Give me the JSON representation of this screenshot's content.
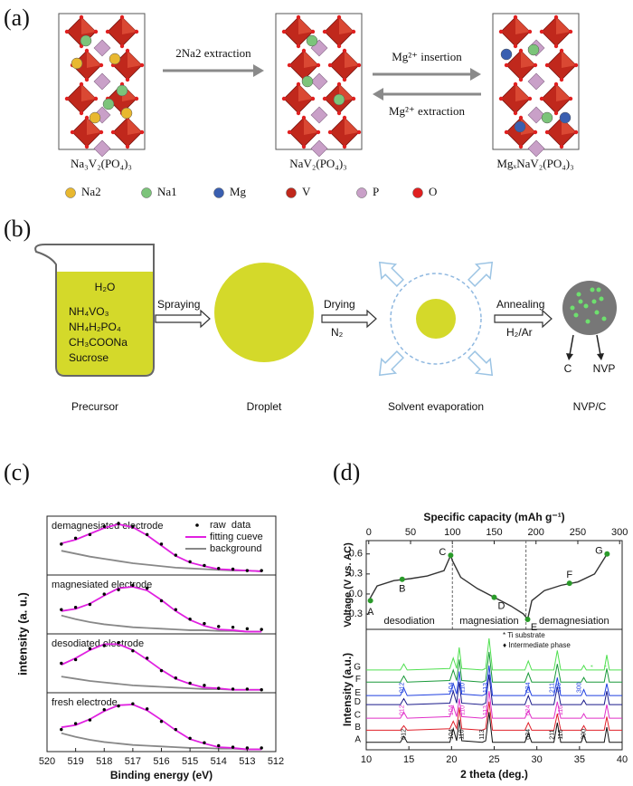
{
  "panel_a": {
    "label": "(a)",
    "arrow_1": "2Na2 extraction",
    "arrow_2": "Mg²⁺ insertion",
    "arrow_3": "Mg²⁺ extraction",
    "structures": [
      "Na₃V₂(PO₄)₃",
      "NaV₂(PO₄)₃",
      "MgₓNaV₂(PO₄)₃"
    ],
    "legend": [
      {
        "name": "Na2",
        "color": "#e8b830"
      },
      {
        "name": "Na1",
        "color": "#7cc47a"
      },
      {
        "name": "Mg",
        "color": "#3a5fb0"
      },
      {
        "name": "V",
        "color": "#c0281c"
      },
      {
        "name": "P",
        "color": "#c9a0c8"
      },
      {
        "name": "O",
        "color": "#e02020"
      }
    ]
  },
  "panel_b": {
    "label": "(b)",
    "solution": [
      "H₂O",
      "NH₄VO₃",
      "NH₄H₂PO₄",
      "CH₃COONa",
      "Sucrose"
    ],
    "stages": [
      "Precursor",
      "Droplet",
      "Solvent evaporation",
      "NVP/C"
    ],
    "arrows": [
      {
        "top": "Spraying"
      },
      {
        "top": "Drying",
        "bottom": "N₂"
      },
      {
        "top": "Annealing",
        "bottom": "H₂/Ar"
      }
    ],
    "components": [
      "C",
      "NVP"
    ]
  },
  "panel_c": {
    "label": "(c)",
    "type": "scatter-fit",
    "x_label": "Binding energy (eV)",
    "y_label": "intensity (a. u.)",
    "xlim": [
      520,
      512
    ],
    "xticks": [
      520,
      519,
      518,
      517,
      516,
      515,
      514,
      513,
      512
    ],
    "legend": {
      "raw": "raw  data",
      "fit": "fitting cueve",
      "background": "background"
    },
    "colors": {
      "raw": "#000000",
      "fit": "#e020e0",
      "background": "#888888"
    },
    "x": [
      519.5,
      519,
      518.5,
      518,
      517.5,
      517,
      516.5,
      516,
      515.5,
      515,
      514.5,
      514,
      513.5,
      513,
      512.5
    ],
    "subplots": [
      {
        "name": "demagnesiated electrode",
        "ylim": [
          0,
          0.8
        ],
        "raw": [
          0.42,
          0.5,
          0.55,
          0.66,
          0.7,
          0.66,
          0.55,
          0.42,
          0.27,
          0.18,
          0.13,
          0.09,
          0.08,
          0.06,
          0.06
        ],
        "fit": [
          0.43,
          0.48,
          0.56,
          0.64,
          0.69,
          0.65,
          0.54,
          0.4,
          0.26,
          0.17,
          0.12,
          0.08,
          0.07,
          0.06,
          0.05
        ],
        "background": [
          0.33,
          0.29,
          0.25,
          0.22,
          0.19,
          0.16,
          0.14,
          0.12,
          0.1,
          0.09,
          0.08,
          0.07,
          0.06,
          0.06,
          0.05
        ]
      },
      {
        "name": "magnesiated electrode",
        "ylim": [
          0,
          0.8
        ],
        "raw": [
          0.33,
          0.36,
          0.4,
          0.54,
          0.6,
          0.66,
          0.62,
          0.45,
          0.33,
          0.2,
          0.14,
          0.1,
          0.09,
          0.07,
          0.06
        ],
        "fit": [
          0.31,
          0.34,
          0.41,
          0.52,
          0.62,
          0.64,
          0.59,
          0.46,
          0.31,
          0.19,
          0.11,
          0.06,
          0.05,
          0.03,
          0.03
        ],
        "background": [
          0.25,
          0.2,
          0.16,
          0.13,
          0.11,
          0.09,
          0.08,
          0.07,
          0.06,
          0.05,
          0.05,
          0.04,
          0.04,
          0.03,
          0.03
        ]
      },
      {
        "name": "desodiated electrode",
        "ylim": [
          0,
          0.8
        ],
        "raw": [
          0.4,
          0.45,
          0.6,
          0.64,
          0.68,
          0.57,
          0.47,
          0.3,
          0.2,
          0.13,
          0.1,
          0.06,
          0.05,
          0.05,
          0.04
        ],
        "fit": [
          0.38,
          0.47,
          0.58,
          0.66,
          0.66,
          0.58,
          0.45,
          0.31,
          0.19,
          0.12,
          0.07,
          0.06,
          0.04,
          0.04,
          0.04
        ],
        "background": [
          0.22,
          0.19,
          0.16,
          0.14,
          0.12,
          0.1,
          0.09,
          0.08,
          0.07,
          0.06,
          0.05,
          0.05,
          0.04,
          0.04,
          0.04
        ]
      },
      {
        "name": "fresh electrode",
        "ylim": [
          0,
          0.8
        ],
        "raw": [
          0.3,
          0.38,
          0.43,
          0.57,
          0.62,
          0.65,
          0.58,
          0.41,
          0.3,
          0.18,
          0.12,
          0.08,
          0.06,
          0.05,
          0.05
        ],
        "fit": [
          0.33,
          0.36,
          0.44,
          0.55,
          0.63,
          0.64,
          0.56,
          0.43,
          0.29,
          0.17,
          0.11,
          0.06,
          0.05,
          0.03,
          0.03
        ],
        "background": [
          0.25,
          0.2,
          0.16,
          0.13,
          0.11,
          0.09,
          0.08,
          0.07,
          0.06,
          0.05,
          0.05,
          0.04,
          0.04,
          0.03,
          0.03
        ]
      }
    ]
  },
  "panel_d": {
    "label": "(d)",
    "voltage": {
      "type": "line",
      "x_label": "Specific capacity (mAh g⁻¹)",
      "y_label": "Voltage (V vs. AC)",
      "xlim": [
        -3,
        303
      ],
      "xticks": [
        0,
        50,
        100,
        150,
        200,
        250,
        300
      ],
      "ylim": [
        -0.53,
        0.8
      ],
      "yticks": [
        0.6,
        0.3,
        {
          "value": 0,
          "label": "0.0"
        },
        -0.3
      ],
      "line_color": "#333333",
      "point_color": "#2a9a2a",
      "x": [
        0,
        10,
        30,
        50,
        70,
        90,
        98,
        100,
        110,
        130,
        150,
        170,
        185,
        190,
        195,
        210,
        230,
        250,
        270,
        285
      ],
      "values": [
        -0.1,
        0.12,
        0.2,
        0.23,
        0.27,
        0.35,
        0.58,
        0.5,
        0.25,
        0.08,
        -0.05,
        -0.18,
        -0.3,
        -0.38,
        -0.1,
        0.05,
        0.13,
        0.18,
        0.3,
        0.6
      ],
      "points": [
        {
          "label": "A",
          "x": 2,
          "y": -0.1
        },
        {
          "label": "B",
          "x": 40,
          "y": 0.22
        },
        {
          "label": "C",
          "x": 98,
          "y": 0.58
        },
        {
          "label": "D",
          "x": 150,
          "y": -0.05
        },
        {
          "label": "E",
          "x": 190,
          "y": -0.38
        },
        {
          "label": "F",
          "x": 240,
          "y": 0.16
        },
        {
          "label": "G",
          "x": 285,
          "y": 0.6
        }
      ],
      "dividers": [
        100,
        188
      ],
      "regions": [
        "desodiation",
        "magnesiation",
        "demagnesiation"
      ]
    },
    "xrd": {
      "type": "line",
      "x_label": "2 theta (deg.)",
      "y_label": "Intensity (a.u.)",
      "xlim": [
        10,
        40
      ],
      "xticks": [
        10,
        15,
        20,
        25,
        30,
        35,
        40
      ],
      "ylim": [
        0,
        8
      ],
      "legend": [
        "* Ti substrate",
        "♦ Intermediate phase"
      ],
      "x": [
        10,
        14.0,
        14.4,
        14.8,
        19.8,
        20.2,
        20.6,
        20.9,
        21.2,
        23.6,
        24.0,
        24.4,
        24.8,
        28.6,
        29.0,
        29.4,
        32.0,
        32.4,
        32.8,
        35.2,
        35.5,
        35.8,
        37.9,
        38.2,
        38.5,
        40
      ],
      "series": [
        {
          "name": "A",
          "color": "#111111",
          "values": [
            0.5,
            0.5,
            0.9,
            0.5,
            0.5,
            1.4,
            0.6,
            2.0,
            0.6,
            0.5,
            0.6,
            2.5,
            0.5,
            0.5,
            1.1,
            0.5,
            0.5,
            1.8,
            0.5,
            0.5,
            1.0,
            0.5,
            0.5,
            1.5,
            0.5,
            0.5
          ]
        },
        {
          "name": "B",
          "color": "#e0202a",
          "values": [
            1.3,
            1.3,
            1.6,
            1.3,
            1.4,
            1.9,
            1.4,
            2.8,
            1.4,
            1.3,
            1.4,
            3.2,
            1.3,
            1.3,
            1.8,
            1.3,
            1.3,
            2.4,
            1.3,
            1.3,
            1.6,
            1.3,
            1.3,
            2.2,
            1.3,
            1.3
          ]
        },
        {
          "name": "C",
          "color": "#e030c8",
          "values": [
            2.1,
            2.1,
            2.5,
            2.1,
            2.2,
            2.9,
            2.2,
            3.4,
            2.2,
            2.1,
            2.2,
            3.9,
            2.1,
            2.1,
            2.6,
            2.1,
            2.1,
            3.2,
            2.1,
            2.1,
            2.4,
            2.1,
            2.1,
            3.0,
            2.1,
            2.1
          ]
        },
        {
          "name": "D",
          "color": "#1a1a8a",
          "values": [
            3.0,
            3.0,
            3.4,
            3.0,
            3.1,
            3.9,
            3.1,
            4.5,
            3.1,
            3.0,
            3.1,
            5.0,
            3.0,
            3.0,
            3.6,
            3.0,
            3.0,
            4.2,
            3.0,
            3.0,
            3.3,
            3.0,
            3.0,
            3.9,
            3.0,
            3.0
          ]
        },
        {
          "name": "E",
          "color": "#2040e0",
          "values": [
            3.6,
            3.6,
            4.1,
            3.6,
            3.7,
            4.4,
            3.7,
            5.2,
            3.7,
            3.6,
            3.7,
            5.6,
            3.6,
            3.6,
            4.2,
            3.6,
            3.6,
            4.8,
            3.6,
            3.6,
            4.0,
            3.6,
            3.6,
            4.4,
            3.6,
            3.6
          ]
        },
        {
          "name": "F",
          "color": "#1a9a3a",
          "values": [
            4.5,
            4.5,
            4.9,
            4.5,
            4.6,
            5.3,
            4.6,
            6.0,
            4.6,
            4.5,
            4.6,
            6.5,
            4.5,
            4.5,
            5.1,
            4.5,
            4.5,
            5.7,
            4.5,
            4.5,
            4.8,
            4.5,
            4.5,
            5.4,
            4.5,
            4.5
          ]
        },
        {
          "name": "G",
          "color": "#50e050",
          "values": [
            5.3,
            5.3,
            5.7,
            5.3,
            5.4,
            6.1,
            5.4,
            6.8,
            5.4,
            5.3,
            5.4,
            7.4,
            5.3,
            5.3,
            5.9,
            5.3,
            5.3,
            6.6,
            5.3,
            5.3,
            5.6,
            5.3,
            5.3,
            6.3,
            5.3,
            5.3
          ]
        }
      ],
      "hkl_labels": [
        {
          "text": "012",
          "x": 14.4,
          "series": 0
        },
        {
          "text": "104",
          "x": 20.0,
          "series": 0
        },
        {
          "text": "110",
          "x": 21.2,
          "series": 0
        },
        {
          "text": "113",
          "x": 23.6,
          "series": 0
        },
        {
          "text": "024",
          "x": 29.0,
          "series": 0
        },
        {
          "text": "211",
          "x": 31.8,
          "series": 0
        },
        {
          "text": "116",
          "x": 32.8,
          "series": 0
        },
        {
          "text": "300",
          "x": 35.5,
          "series": 0
        },
        {
          "text": "012",
          "x": 14.2,
          "series": 2
        },
        {
          "text": "104",
          "x": 20.0,
          "series": 2
        },
        {
          "text": "110",
          "x": 21.3,
          "series": 2
        },
        {
          "text": "113",
          "x": 24.0,
          "series": 2
        },
        {
          "text": "024",
          "x": 29.0,
          "series": 2
        },
        {
          "text": "116",
          "x": 32.8,
          "series": 2
        },
        {
          "text": "012",
          "x": 14.2,
          "series": 4
        },
        {
          "text": "104",
          "x": 20.0,
          "series": 4
        },
        {
          "text": "110",
          "x": 21.3,
          "series": 4
        },
        {
          "text": "113",
          "x": 24.0,
          "series": 4
        },
        {
          "text": "024",
          "x": 29.0,
          "series": 4
        },
        {
          "text": "211",
          "x": 31.8,
          "series": 4
        },
        {
          "text": "116",
          "x": 32.6,
          "series": 4
        },
        {
          "text": "300",
          "x": 35.0,
          "series": 4
        },
        {
          "text": "*",
          "x": 36.6,
          "series": 6
        },
        {
          "text": "*",
          "x": 38.2,
          "series": 6
        }
      ]
    }
  }
}
